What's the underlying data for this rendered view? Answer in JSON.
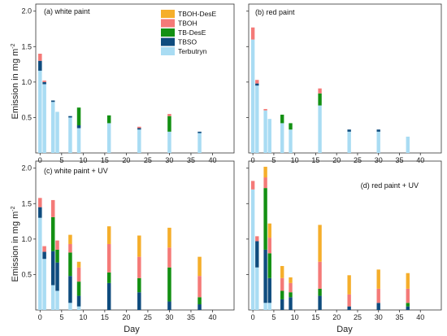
{
  "figure": {
    "ylabel": "Emission in mg m",
    "ylabel_sup": "-2",
    "xlabel": "Day"
  },
  "legend": [
    {
      "name": "TBOH-DesE",
      "color": "#F5AE2B"
    },
    {
      "name": "TBOH",
      "color": "#F47A78"
    },
    {
      "name": "TB-DesE",
      "color": "#139013"
    },
    {
      "name": "TBSO",
      "color": "#0F4C7E"
    },
    {
      "name": "Terbutryn",
      "color": "#A9DCF3"
    }
  ],
  "chart_data": [
    {
      "type": "bar",
      "title": "(a) white paint",
      "xlim": [
        -1,
        45
      ],
      "ylim": [
        0,
        2.1
      ],
      "xticks": [
        0,
        5,
        10,
        15,
        20,
        25,
        30,
        35,
        40
      ],
      "yticks": [
        0.5,
        1.0,
        1.5,
        2.0
      ],
      "bars": [
        {
          "day": 0,
          "Terbutryn": 1.16,
          "TBSO": 0.14,
          "TB-DesE": 0,
          "TBOH": 0.1,
          "TBOH-DesE": 0
        },
        {
          "day": 1,
          "Terbutryn": 0.97,
          "TBSO": 0.03,
          "TB-DesE": 0,
          "TBOH": 0.02,
          "TBOH-DesE": 0
        },
        {
          "day": 3,
          "Terbutryn": 0.72,
          "TBSO": 0.02,
          "TB-DesE": 0,
          "TBOH": 0,
          "TBOH-DesE": 0
        },
        {
          "day": 4,
          "Terbutryn": 0.58,
          "TBSO": 0,
          "TB-DesE": 0,
          "TBOH": 0,
          "TBOH-DesE": 0
        },
        {
          "day": 7,
          "Terbutryn": 0.5,
          "TBSO": 0.02,
          "TB-DesE": 0,
          "TBOH": 0,
          "TBOH-DesE": 0
        },
        {
          "day": 9,
          "Terbutryn": 0.35,
          "TBSO": 0.04,
          "TB-DesE": 0.25,
          "TBOH": 0,
          "TBOH-DesE": 0
        },
        {
          "day": 16,
          "Terbutryn": 0.42,
          "TBSO": 0,
          "TB-DesE": 0.11,
          "TBOH": 0,
          "TBOH-DesE": 0
        },
        {
          "day": 23,
          "Terbutryn": 0.33,
          "TBSO": 0.02,
          "TB-DesE": 0,
          "TBOH": 0.02,
          "TBOH-DesE": 0
        },
        {
          "day": 30,
          "Terbutryn": 0.3,
          "TBSO": 0,
          "TB-DesE": 0.22,
          "TBOH": 0.03,
          "TBOH-DesE": 0
        },
        {
          "day": 37,
          "Terbutryn": 0.28,
          "TBSO": 0.02,
          "TB-DesE": 0,
          "TBOH": 0,
          "TBOH-DesE": 0
        }
      ]
    },
    {
      "type": "bar",
      "title": "(b) red paint",
      "xlim": [
        -1,
        45
      ],
      "ylim": [
        0,
        2.1
      ],
      "xticks": [
        0,
        5,
        10,
        15,
        20,
        25,
        30,
        35,
        40
      ],
      "yticks": [
        0.5,
        1.0,
        1.5,
        2.0
      ],
      "bars": [
        {
          "day": 0,
          "Terbutryn": 1.6,
          "TBSO": 0,
          "TB-DesE": 0,
          "TBOH": 0.17,
          "TBOH-DesE": 0
        },
        {
          "day": 1,
          "Terbutryn": 0.95,
          "TBSO": 0.03,
          "TB-DesE": 0,
          "TBOH": 0.05,
          "TBOH-DesE": 0
        },
        {
          "day": 3,
          "Terbutryn": 0.6,
          "TBSO": 0,
          "TB-DesE": 0,
          "TBOH": 0.02,
          "TBOH-DesE": 0
        },
        {
          "day": 4,
          "Terbutryn": 0.48,
          "TBSO": 0,
          "TB-DesE": 0,
          "TBOH": 0,
          "TBOH-DesE": 0
        },
        {
          "day": 7,
          "Terbutryn": 0.42,
          "TBSO": 0,
          "TB-DesE": 0.12,
          "TBOH": 0,
          "TBOH-DesE": 0
        },
        {
          "day": 9,
          "Terbutryn": 0.33,
          "TBSO": 0,
          "TB-DesE": 0.09,
          "TBOH": 0,
          "TBOH-DesE": 0
        },
        {
          "day": 16,
          "Terbutryn": 0.67,
          "TBSO": 0,
          "TB-DesE": 0.17,
          "TBOH": 0.07,
          "TBOH-DesE": 0
        },
        {
          "day": 23,
          "Terbutryn": 0.3,
          "TBSO": 0.03,
          "TB-DesE": 0,
          "TBOH": 0,
          "TBOH-DesE": 0
        },
        {
          "day": 30,
          "Terbutryn": 0.3,
          "TBSO": 0.03,
          "TB-DesE": 0,
          "TBOH": 0,
          "TBOH-DesE": 0
        },
        {
          "day": 37,
          "Terbutryn": 0.23,
          "TBSO": 0,
          "TB-DesE": 0,
          "TBOH": 0,
          "TBOH-DesE": 0
        }
      ]
    },
    {
      "type": "bar",
      "title": "(c) white paint + UV",
      "xlim": [
        -1,
        45
      ],
      "ylim": [
        0,
        2.1
      ],
      "xticks": [
        0,
        5,
        10,
        15,
        20,
        25,
        30,
        35,
        40
      ],
      "yticks": [
        0.5,
        1.0,
        1.5,
        2.0
      ],
      "bars": [
        {
          "day": 0,
          "Terbutryn": 1.3,
          "TBSO": 0.15,
          "TB-DesE": 0,
          "TBOH": 0.13,
          "TBOH-DesE": 0
        },
        {
          "day": 1,
          "Terbutryn": 0.72,
          "TBSO": 0.1,
          "TB-DesE": 0,
          "TBOH": 0.08,
          "TBOH-DesE": 0
        },
        {
          "day": 3,
          "Terbutryn": 0.35,
          "TBSO": 0.48,
          "TB-DesE": 0.48,
          "TBOH": 0.24,
          "TBOH-DesE": 0
        },
        {
          "day": 4,
          "Terbutryn": 0.27,
          "TBSO": 0.4,
          "TB-DesE": 0.18,
          "TBOH": 0.13,
          "TBOH-DesE": 0
        },
        {
          "day": 7,
          "Terbutryn": 0.1,
          "TBSO": 0.38,
          "TB-DesE": 0.33,
          "TBOH": 0.12,
          "TBOH-DesE": 0.13
        },
        {
          "day": 9,
          "Terbutryn": 0.05,
          "TBSO": 0.15,
          "TB-DesE": 0.2,
          "TBOH": 0.2,
          "TBOH-DesE": 0.08
        },
        {
          "day": 16,
          "Terbutryn": 0,
          "TBSO": 0.38,
          "TB-DesE": 0.15,
          "TBOH": 0.4,
          "TBOH-DesE": 0.25
        },
        {
          "day": 23,
          "Terbutryn": 0,
          "TBSO": 0.25,
          "TB-DesE": 0.2,
          "TBOH": 0.3,
          "TBOH-DesE": 0.3
        },
        {
          "day": 30,
          "Terbutryn": 0,
          "TBSO": 0.12,
          "TB-DesE": 0.48,
          "TBOH": 0.28,
          "TBOH-DesE": 0.28
        },
        {
          "day": 37,
          "Terbutryn": 0,
          "TBSO": 0.08,
          "TB-DesE": 0.1,
          "TBOH": 0.3,
          "TBOH-DesE": 0.27
        }
      ]
    },
    {
      "type": "bar",
      "title": "(d) red paint + UV",
      "xlim": [
        -1,
        45
      ],
      "ylim": [
        0,
        2.1
      ],
      "xticks": [
        0,
        5,
        10,
        15,
        20,
        25,
        30,
        35,
        40
      ],
      "yticks": [
        0.5,
        1.0,
        1.5,
        2.0
      ],
      "bars": [
        {
          "day": 0,
          "Terbutryn": 1.7,
          "TBSO": 0,
          "TB-DesE": 0,
          "TBOH": 0.12,
          "TBOH-DesE": 0
        },
        {
          "day": 1,
          "Terbutryn": 0.6,
          "TBSO": 0.37,
          "TB-DesE": 0,
          "TBOH": 0.07,
          "TBOH-DesE": 0
        },
        {
          "day": 3,
          "Terbutryn": 0.1,
          "TBSO": 0.75,
          "TB-DesE": 0.87,
          "TBOH": 0.15,
          "TBOH-DesE": 0.15
        },
        {
          "day": 4,
          "Terbutryn": 0.1,
          "TBSO": 0.35,
          "TB-DesE": 0.35,
          "TBOH": 0.22,
          "TBOH-DesE": 0.2
        },
        {
          "day": 7,
          "Terbutryn": 0,
          "TBSO": 0.15,
          "TB-DesE": 0.12,
          "TBOH": 0.18,
          "TBOH-DesE": 0.17
        },
        {
          "day": 9,
          "Terbutryn": 0,
          "TBSO": 0.18,
          "TB-DesE": 0.07,
          "TBOH": 0.13,
          "TBOH-DesE": 0.08
        },
        {
          "day": 16,
          "Terbutryn": 0,
          "TBSO": 0.2,
          "TB-DesE": 0.1,
          "TBOH": 0.38,
          "TBOH-DesE": 0.52
        },
        {
          "day": 23,
          "Terbutryn": 0,
          "TBSO": 0.05,
          "TB-DesE": 0,
          "TBOH": 0.17,
          "TBOH-DesE": 0.27
        },
        {
          "day": 30,
          "Terbutryn": 0,
          "TBSO": 0.1,
          "TB-DesE": 0,
          "TBOH": 0.2,
          "TBOH-DesE": 0.27
        },
        {
          "day": 37,
          "Terbutryn": 0,
          "TBSO": 0.05,
          "TB-DesE": 0.05,
          "TBOH": 0.2,
          "TBOH-DesE": 0.22
        }
      ]
    }
  ]
}
